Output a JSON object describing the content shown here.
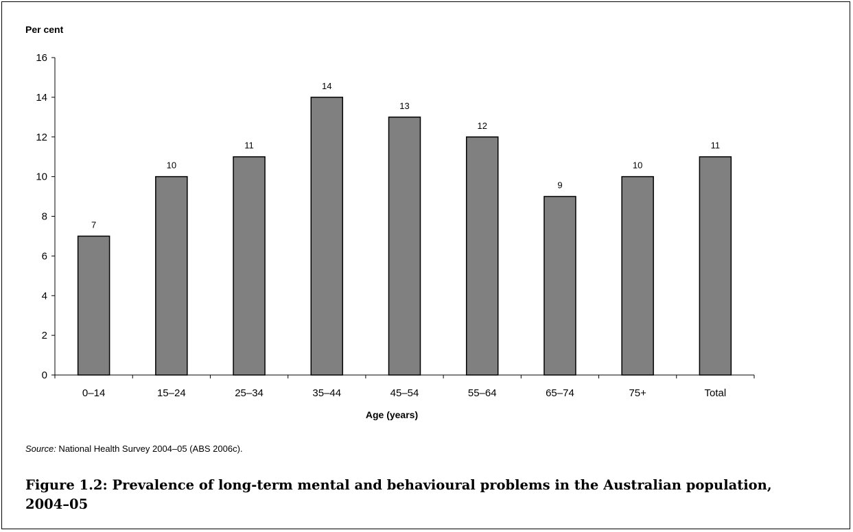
{
  "chart_data": {
    "type": "bar",
    "ylabel": "Per cent",
    "xlabel": "Age (years)",
    "categories": [
      "0–14",
      "15–24",
      "25–34",
      "35–44",
      "45–54",
      "55–64",
      "65–74",
      "75+",
      "Total"
    ],
    "values": [
      7,
      10,
      11,
      14,
      13,
      12,
      9,
      10,
      11
    ],
    "data_labels": [
      "7",
      "10",
      "11",
      "14",
      "13",
      "12",
      "9",
      "10",
      "11"
    ],
    "ylim": [
      0,
      16
    ],
    "yticks": [
      0,
      2,
      4,
      6,
      8,
      10,
      12,
      14,
      16
    ],
    "grid": false,
    "bar_color": "#808080"
  },
  "source": {
    "label": "Source:",
    "text": " National Health Survey 2004–05 (ABS 2006c)."
  },
  "caption": "Figure 1.2: Prevalence of long-term mental and behavioural problems in the Australian population, 2004–05"
}
